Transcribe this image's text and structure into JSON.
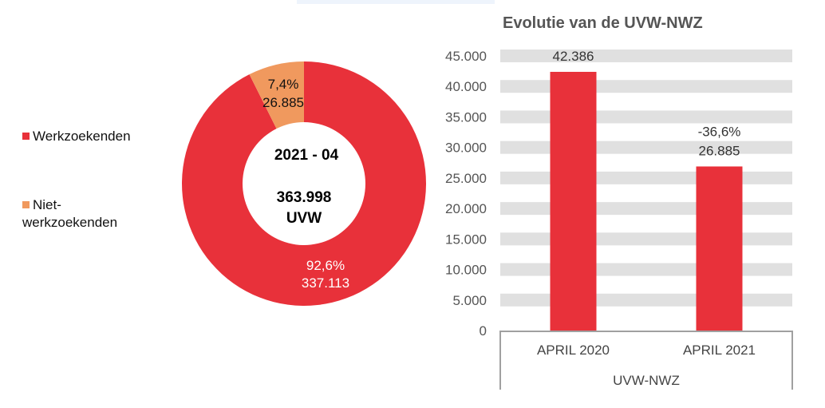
{
  "chart_data": [
    {
      "type": "pie",
      "variant": "donut",
      "center_label": {
        "period": "2021 - 04",
        "total": "363.998",
        "unit": "UVW"
      },
      "legend": {
        "position": "left"
      },
      "slices": [
        {
          "name": "Werkzoekenden",
          "value": 337113,
          "value_label": "337.113",
          "percent_label": "92,6%",
          "color": "#e8313a"
        },
        {
          "name": "Niet-werkzoekenden",
          "value": 26885,
          "value_label": "26.885",
          "percent_label": "7,4%",
          "color": "#f0995e"
        }
      ]
    },
    {
      "type": "bar",
      "title": "Evolutie van de UVW-NWZ",
      "categories": [
        "APRIL 2020",
        "APRIL 2021"
      ],
      "group_label": "UVW-NWZ",
      "values": [
        42386,
        26885
      ],
      "data_labels": [
        "42.386",
        "26.885"
      ],
      "change_labels": [
        "",
        "-36,6%"
      ],
      "color": "#e8313a",
      "ylim": [
        0,
        45000
      ],
      "yticks": [
        0,
        5000,
        10000,
        15000,
        20000,
        25000,
        30000,
        35000,
        40000,
        45000
      ],
      "ytick_labels": [
        "0",
        "5.000",
        "10.000",
        "15.000",
        "20.000",
        "25.000",
        "30.000",
        "35.000",
        "40.000",
        "45.000"
      ],
      "grid": "horizontal bands"
    }
  ]
}
